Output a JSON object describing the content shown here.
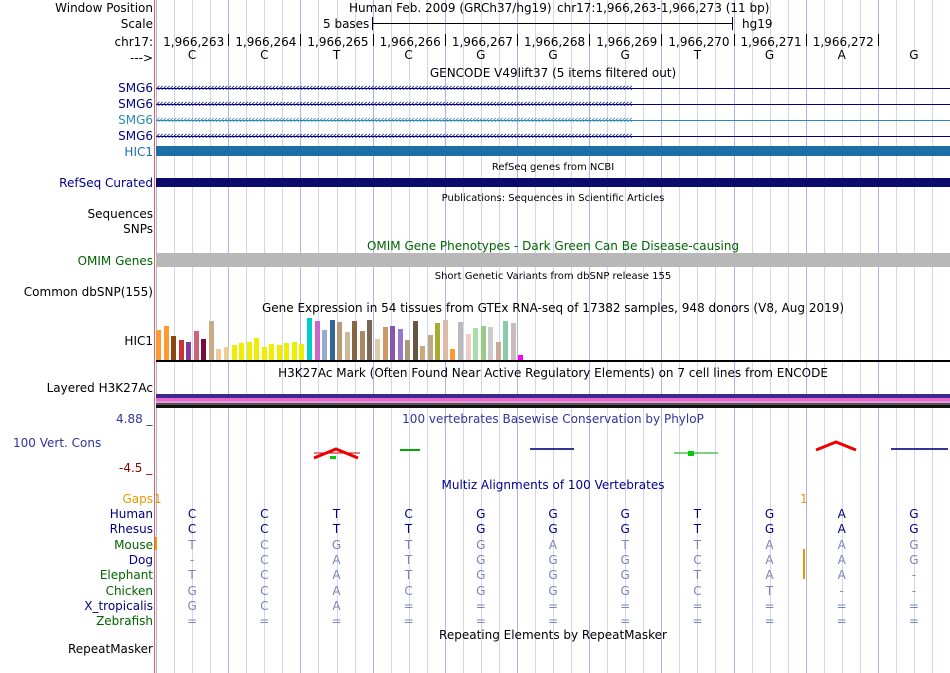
{
  "header": {
    "window_position_label": "Window Position",
    "scale_label": "Scale",
    "chrom_label": "chr17:",
    "strand_label": "--->",
    "assembly": "Human Feb. 2009 (GRCh37/hg19)",
    "position": "chr17:1,966,263-1,966,273 (11 bp)",
    "scale_text": "5 bases",
    "db": "hg19",
    "coords": [
      "1,966,263",
      "1,966,264",
      "1,966,265",
      "1,966,266",
      "1,966,267",
      "1,966,268",
      "1,966,269",
      "1,966,270",
      "1,966,271",
      "1,966,272"
    ],
    "bases": [
      "C",
      "C",
      "T",
      "C",
      "G",
      "G",
      "G",
      "T",
      "G",
      "A",
      "G"
    ]
  },
  "gencode": {
    "title": "GENCODE V49lift37 (5 items filtered out)",
    "genes": [
      {
        "label": "SMG6",
        "color": "#000080"
      },
      {
        "label": "SMG6",
        "color": "#000080"
      },
      {
        "label": "SMG6",
        "color": "#2a8ab5"
      },
      {
        "label": "SMG6",
        "color": "#000080"
      },
      {
        "label": "HIC1",
        "color": "#1c6fa6"
      }
    ]
  },
  "refseq": {
    "title": "RefSeq genes from NCBI",
    "label": "RefSeq Curated",
    "color": "#0b0b6e"
  },
  "publications": {
    "title": "Publications: Sequences in Scientific Articles",
    "label1": "Sequences",
    "label2": "SNPs"
  },
  "omim": {
    "title": "OMIM Gene Phenotypes - Dark Green Can Be Disease-causing",
    "label": "OMIM Genes",
    "color": "#006400",
    "bar_color": "#b8b8b8"
  },
  "dbsnp": {
    "title": "Short Genetic Variants from dbSNP release 155",
    "label": "Common dbSNP(155)"
  },
  "gtex": {
    "title": "Gene Expression in 54 tissues from GTEx RNA-seq of 17382 samples, 948 donors (V8, Aug 2019)",
    "label": "HIC1",
    "bars": [
      {
        "value": 0.72,
        "color": "#ff9933"
      },
      {
        "value": 0.8,
        "color": "#ff9933"
      },
      {
        "value": 0.58,
        "color": "#8b4513"
      },
      {
        "value": 0.48,
        "color": "#cc3333"
      },
      {
        "value": 0.42,
        "color": "#7f3f98"
      },
      {
        "value": 0.7,
        "color": "#cc6677"
      },
      {
        "value": 0.5,
        "color": "#7a0a3a"
      },
      {
        "value": 0.92,
        "color": "#ccaa88"
      },
      {
        "value": 0.26,
        "color": "#eecc99"
      },
      {
        "value": 0.3,
        "color": "#eecc99"
      },
      {
        "value": 0.36,
        "color": "#eeee00"
      },
      {
        "value": 0.4,
        "color": "#eeee00"
      },
      {
        "value": 0.44,
        "color": "#eeee00"
      },
      {
        "value": 0.52,
        "color": "#eeee00"
      },
      {
        "value": 0.32,
        "color": "#eeee00"
      },
      {
        "value": 0.38,
        "color": "#eeee00"
      },
      {
        "value": 0.35,
        "color": "#eeee00"
      },
      {
        "value": 0.4,
        "color": "#eeee00"
      },
      {
        "value": 0.42,
        "color": "#eeee00"
      },
      {
        "value": 0.39,
        "color": "#eeee00"
      },
      {
        "value": 1.0,
        "color": "#00cccc"
      },
      {
        "value": 0.94,
        "color": "#cc66cc"
      },
      {
        "value": 0.72,
        "color": "#99aacc"
      },
      {
        "value": 0.96,
        "color": "#336699"
      },
      {
        "value": 0.9,
        "color": "#bb9977"
      },
      {
        "value": 0.66,
        "color": "#ccbb99"
      },
      {
        "value": 0.94,
        "color": "#886644"
      },
      {
        "value": 0.7,
        "color": "#aa8866"
      },
      {
        "value": 0.96,
        "color": "#776655"
      },
      {
        "value": 0.5,
        "color": "#ddccaa"
      },
      {
        "value": 0.78,
        "color": "#cc9966"
      },
      {
        "value": 0.82,
        "color": "#8855aa"
      },
      {
        "value": 0.74,
        "color": "#9977cc"
      },
      {
        "value": 0.48,
        "color": "#aa9977"
      },
      {
        "value": 0.92,
        "color": "#665544"
      },
      {
        "value": 0.34,
        "color": "#ccaa77"
      },
      {
        "value": 0.6,
        "color": "#bbaa88"
      },
      {
        "value": 0.88,
        "color": "#aaaa33"
      },
      {
        "value": 0.96,
        "color": "#ddbbaa"
      },
      {
        "value": 0.26,
        "color": "#ff9933"
      },
      {
        "value": 0.9,
        "color": "#bbbbbb"
      },
      {
        "value": 0.62,
        "color": "#eecccc"
      },
      {
        "value": 0.76,
        "color": "#aaddaa"
      },
      {
        "value": 0.8,
        "color": "#99cc88"
      },
      {
        "value": 0.78,
        "color": "#cccccc"
      },
      {
        "value": 0.44,
        "color": "#ccaa99"
      },
      {
        "value": 0.94,
        "color": "#88ccaa"
      },
      {
        "value": 0.88,
        "color": "#ccbbbb"
      },
      {
        "value": 0.12,
        "color": "#ff00ff"
      }
    ]
  },
  "h3k27ac": {
    "title": "H3K27Ac Mark (Often Found Near Active Regulatory Elements) on 7 cell lines from ENCODE",
    "label": "Layered H3K27Ac"
  },
  "phylop": {
    "title": "100 vertebrates Basewise Conservation by PhyloP",
    "label": "100 Vert. Cons",
    "max": "4.88 _",
    "min": "-4.5 _"
  },
  "multiz": {
    "title": "Multiz Alignments of 100 Vertebrates",
    "gaps_label": "Gaps",
    "gaps_marks": [
      "1",
      "1"
    ],
    "species": [
      {
        "name": "Human",
        "name_color": "#000080",
        "base_color": "#000080",
        "bases": [
          "C",
          "C",
          "T",
          "C",
          "G",
          "G",
          "G",
          "T",
          "G",
          "A",
          "G"
        ]
      },
      {
        "name": "Rhesus",
        "name_color": "#000080",
        "base_color": "#000080",
        "bases": [
          "C",
          "C",
          "T",
          "T",
          "G",
          "G",
          "G",
          "T",
          "G",
          "A",
          "G"
        ]
      },
      {
        "name": "Mouse",
        "name_color": "#006400",
        "base_color": "#7a86b8",
        "bases": [
          "T",
          "C",
          "G",
          "T",
          "G",
          "A",
          "T",
          "T",
          "A",
          "A",
          "G"
        ]
      },
      {
        "name": "Dog",
        "name_color": "#000080",
        "base_color": "#7a86b8",
        "bases": [
          "-",
          "C",
          "A",
          "T",
          "G",
          "G",
          "G",
          "C",
          "A",
          "A",
          "G"
        ]
      },
      {
        "name": "Elephant",
        "name_color": "#006400",
        "base_color": "#7a86b8",
        "bases": [
          "T",
          "C",
          "A",
          "T",
          "G",
          "G",
          "G",
          "T",
          "A",
          "A",
          "-"
        ]
      },
      {
        "name": "Chicken",
        "name_color": "#006400",
        "base_color": "#7a86b8",
        "bases": [
          "G",
          "C",
          "A",
          "C",
          "G",
          "G",
          "G",
          "C",
          "T",
          "-",
          "-"
        ]
      },
      {
        "name": "X_tropicalis",
        "name_color": "#000080",
        "base_color": "#7a86b8",
        "bases": [
          "G",
          "C",
          "A",
          "=",
          "=",
          "=",
          "=",
          "=",
          "=",
          "=",
          "="
        ]
      },
      {
        "name": "Zebrafish",
        "name_color": "#006400",
        "base_color": "#7a86b8",
        "bases": [
          "=",
          "=",
          "=",
          "=",
          "=",
          "=",
          "=",
          "=",
          "=",
          "=",
          "="
        ]
      }
    ]
  },
  "repeatmasker": {
    "title": "Repeating Elements by RepeatMasker",
    "label": "RepeatMasker"
  }
}
